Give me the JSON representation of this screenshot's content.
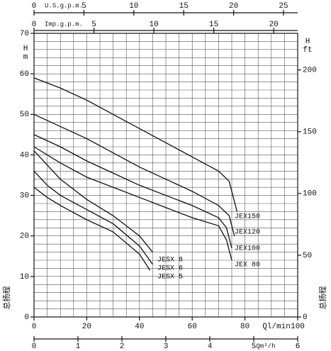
{
  "chart_data": {
    "type": "line",
    "ylabel": [
      "H",
      "m"
    ],
    "y2label": [
      "H",
      "ft"
    ],
    "side_label": "总扬程",
    "xlabel": "Ql/min",
    "xlim": [
      0,
      100
    ],
    "xticks": [
      0,
      20,
      40,
      60,
      80,
      100
    ],
    "ylim": [
      0,
      70
    ],
    "yticks": [
      0,
      10,
      20,
      30,
      40,
      50,
      60,
      70
    ],
    "y2lim": [
      0,
      229.66
    ],
    "y2ticks": [
      0,
      50,
      100,
      150,
      200
    ],
    "bottom_axis": {
      "label": "Qm³/h",
      "lim": [
        0,
        6
      ],
      "ticks": [
        0,
        1,
        2,
        3,
        4,
        5,
        6
      ]
    },
    "top_axis": {
      "label": "U.S.g.p.m.",
      "lim": [
        0,
        26.42
      ],
      "ticks": [
        0,
        5,
        10,
        15,
        20,
        25
      ]
    },
    "top2_axis": {
      "label": "Imp.g.p.m.",
      "lim": [
        0,
        22
      ],
      "ticks": [
        0,
        5,
        10,
        15,
        20
      ]
    },
    "grid": true,
    "xgrid": [
      0,
      5,
      10,
      15,
      20,
      25,
      30,
      35,
      40,
      45,
      50,
      55,
      60,
      65,
      70,
      75,
      80,
      85,
      90,
      95,
      100
    ],
    "ygrid": [
      0,
      2,
      4,
      6,
      8,
      10,
      12,
      14,
      16,
      18,
      20,
      22,
      24,
      26,
      28,
      30,
      32,
      34,
      36,
      38,
      40,
      42,
      44,
      46,
      48,
      50,
      52,
      54,
      56,
      58,
      60,
      62,
      64,
      66,
      68,
      70
    ],
    "color": "#111111",
    "series": [
      {
        "name": "JEX150",
        "x": [
          0,
          10,
          20,
          30,
          40,
          50,
          60,
          70,
          74,
          77
        ],
        "values": [
          59,
          56.5,
          53.5,
          50,
          46.5,
          43,
          39.5,
          36,
          33.5,
          26
        ]
      },
      {
        "name": "JEX120",
        "x": [
          0,
          10,
          20,
          30,
          40,
          50,
          60,
          70,
          74,
          76
        ],
        "values": [
          50,
          47,
          44,
          40.5,
          37,
          34,
          31,
          27.5,
          25,
          20
        ]
      },
      {
        "name": "JEX100",
        "x": [
          0,
          10,
          20,
          30,
          40,
          50,
          60,
          70,
          73,
          75
        ],
        "values": [
          45,
          42,
          38.5,
          35.5,
          32.5,
          30,
          27.5,
          24.5,
          22,
          17
        ]
      },
      {
        "name": "JEX 80",
        "x": [
          0,
          10,
          20,
          30,
          40,
          50,
          60,
          70,
          73,
          75
        ],
        "values": [
          42,
          38,
          34.5,
          32,
          29.5,
          27,
          24.5,
          22.5,
          19,
          14
        ]
      },
      {
        "name": "JESX 8",
        "x": [
          0,
          5,
          10,
          20,
          30,
          40,
          45
        ],
        "values": [
          41,
          37.5,
          34,
          29,
          25,
          20,
          16
        ]
      },
      {
        "name": "JESX 6",
        "x": [
          0,
          5,
          10,
          20,
          30,
          40,
          45
        ],
        "values": [
          36,
          32.5,
          30,
          26.5,
          23,
          17.5,
          13
        ]
      },
      {
        "name": "JESX 5",
        "x": [
          0,
          5,
          10,
          20,
          30,
          40,
          44
        ],
        "values": [
          32,
          29.5,
          27.5,
          24,
          21,
          15.5,
          11.5
        ]
      }
    ]
  }
}
